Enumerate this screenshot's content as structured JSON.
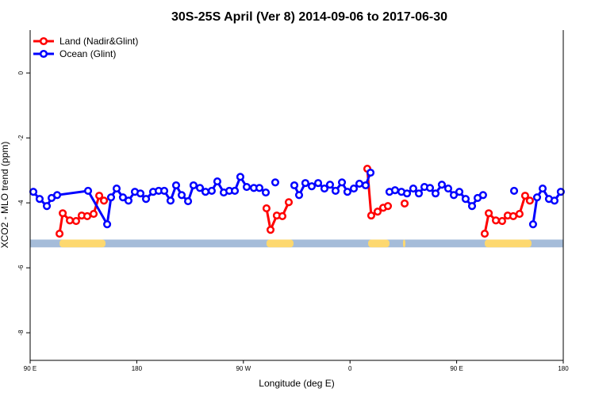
{
  "chart_data": {
    "type": "line",
    "title": "30S-25S April (Ver 8)   2014-09-06 to 2017-06-30",
    "xlabel": "Longitude (deg E)",
    "ylabel": "XCO2 - MLO trend (ppm)",
    "xlim": [
      90,
      540
    ],
    "ylim": [
      -8.85,
      1.32
    ],
    "xticks": [
      90,
      180,
      270,
      360,
      450,
      540
    ],
    "xtick_labels": [
      "90 E",
      "180",
      "90 W",
      "0",
      "90 E",
      "180"
    ],
    "yticks": [
      0,
      -2,
      -4,
      -6,
      -8
    ],
    "ytick_labels": [
      "0",
      "-2",
      "-4",
      "-6",
      "-8"
    ],
    "legend": "top-left",
    "series": [
      {
        "name": "Land (Nadir&Glint)",
        "color": "#ff0000",
        "x": [
          114.8,
          117.5,
          123.5,
          128.8,
          133.5,
          138.2,
          143.6,
          148.3,
          152.3,
          null,
          289.5,
          292.9,
          298.2,
          302.9,
          308.3,
          null,
          374.6,
          377.9,
          383.3,
          388.0,
          392.0,
          null,
          406.1,
          null,
          473.7,
          477.1,
          483.1,
          488.4,
          493.1,
          497.8,
          503.1,
          507.8,
          511.8
        ],
        "y": [
          -4.95,
          -4.32,
          -4.54,
          -4.56,
          -4.39,
          -4.41,
          -4.34,
          -3.78,
          -3.93,
          null,
          -4.17,
          -4.83,
          -4.39,
          -4.41,
          -3.98,
          null,
          -2.95,
          -4.39,
          -4.27,
          -4.15,
          -4.1,
          null,
          -4.02,
          null,
          -4.95,
          -4.32,
          -4.54,
          -4.56,
          -4.39,
          -4.41,
          -4.34,
          -3.78,
          -3.93
        ]
      },
      {
        "name": "Ocean (Glint)",
        "color": "#0000ff",
        "x": [
          92.7,
          98.0,
          104.1,
          108.1,
          112.8,
          138.9,
          155.0,
          158.3,
          163.0,
          168.3,
          173.0,
          178.4,
          183.1,
          187.8,
          193.8,
          198.5,
          203.2,
          208.5,
          213.2,
          217.9,
          223.3,
          227.9,
          233.3,
          238.0,
          243.3,
          248.0,
          253.4,
          258.1,
          262.8,
          267.4,
          272.8,
          278.8,
          283.5,
          288.9,
          null,
          296.9,
          null,
          313.0,
          317.0,
          322.3,
          327.7,
          333.1,
          338.4,
          343.1,
          347.8,
          353.2,
          357.8,
          363.2,
          367.9,
          373.2,
          377.3,
          null,
          393.3,
          398.0,
          403.4,
          408.1,
          413.4,
          418.1,
          422.8,
          427.5,
          432.2,
          437.5,
          442.9,
          447.6,
          452.3,
          457.6,
          463.0,
          467.7,
          472.3,
          null,
          498.5,
          null,
          514.5,
          517.9,
          522.6,
          527.9,
          532.6,
          537.9
        ],
        "y": [
          -3.66,
          -3.88,
          -4.1,
          -3.85,
          -3.76,
          -3.63,
          -4.66,
          -3.83,
          -3.56,
          -3.83,
          -3.93,
          -3.66,
          -3.71,
          -3.88,
          -3.66,
          -3.63,
          -3.63,
          -3.93,
          -3.46,
          -3.76,
          -3.95,
          -3.46,
          -3.54,
          -3.66,
          -3.63,
          -3.34,
          -3.68,
          -3.63,
          -3.63,
          -3.2,
          -3.51,
          -3.54,
          -3.54,
          -3.68,
          null,
          -3.37,
          null,
          -3.46,
          -3.76,
          -3.39,
          -3.49,
          -3.39,
          -3.56,
          -3.44,
          -3.63,
          -3.37,
          -3.66,
          -3.56,
          -3.41,
          -3.46,
          -3.07,
          null,
          -3.66,
          -3.61,
          -3.66,
          -3.71,
          -3.56,
          -3.71,
          -3.51,
          -3.54,
          -3.71,
          -3.44,
          -3.56,
          -3.76,
          -3.66,
          -3.88,
          -4.1,
          -3.85,
          -3.76,
          null,
          -3.63,
          null,
          -4.66,
          -3.83,
          -3.56,
          -3.88,
          -3.93,
          -3.66
        ]
      }
    ],
    "mask_band": {
      "y_range": [
        -5.37,
        -5.13
      ],
      "ocean_color": "#a5bcd9",
      "land_color": "#fdd86f",
      "land_segments": [
        [
          114.8,
          153.6
        ],
        [
          289.5,
          312.3
        ],
        [
          375.3,
          393.3
        ],
        [
          404.7,
          406.7
        ],
        [
          473.7,
          513.2
        ]
      ]
    }
  }
}
